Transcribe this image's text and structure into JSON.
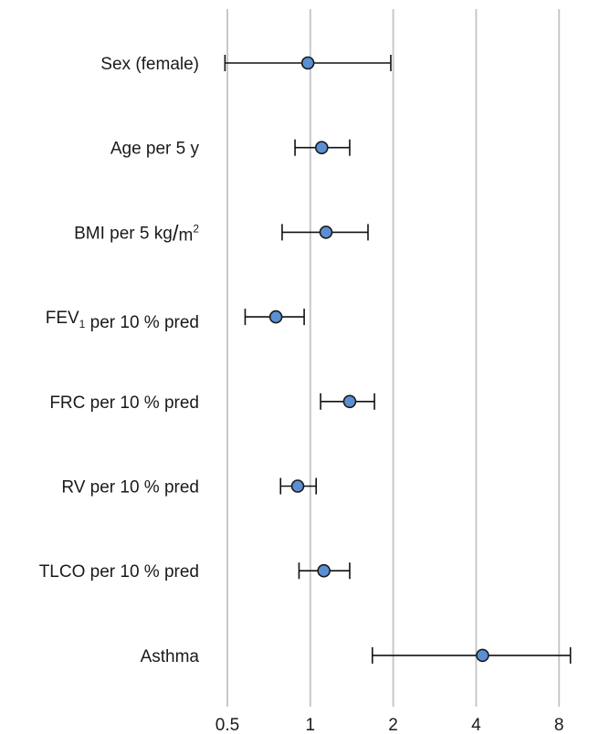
{
  "chart_data": {
    "type": "forest",
    "x_scale": "log2",
    "xlim": [
      0.5,
      8.8
    ],
    "x_ticks": [
      0.5,
      1,
      2,
      4,
      8
    ],
    "x_tick_labels": [
      "0.5",
      "1",
      "2",
      "4",
      "8"
    ],
    "grid": "vertical",
    "point_color": "#5b8fd4",
    "grid_color": "#c8c8c8",
    "rows": [
      {
        "label": "Sex (female)",
        "estimate": 0.98,
        "lower": 0.49,
        "upper": 1.96
      },
      {
        "label": "Age per 5 y",
        "estimate": 1.1,
        "lower": 0.88,
        "upper": 1.39
      },
      {
        "label_parts": [
          {
            "t": "BMI per 5 kg"
          },
          {
            "t": "/",
            "large": true
          },
          {
            "t": "m"
          },
          {
            "t": "2",
            "sup": true
          }
        ],
        "estimate": 1.14,
        "lower": 0.79,
        "upper": 1.62
      },
      {
        "label_parts": [
          {
            "t": "FEV"
          },
          {
            "t": "1",
            "sub": true
          },
          {
            "t": " per 10 % pred"
          }
        ],
        "estimate": 0.75,
        "lower": 0.58,
        "upper": 0.95
      },
      {
        "label": "FRC per 10 % pred",
        "estimate": 1.39,
        "lower": 1.09,
        "upper": 1.71
      },
      {
        "label": "RV per 10 % pred",
        "estimate": 0.9,
        "lower": 0.78,
        "upper": 1.05
      },
      {
        "label": "TLCO per 10 % pred",
        "estimate": 1.12,
        "lower": 0.91,
        "upper": 1.39
      },
      {
        "label": "Asthma",
        "estimate": 4.22,
        "lower": 1.68,
        "upper": 8.8
      }
    ]
  }
}
